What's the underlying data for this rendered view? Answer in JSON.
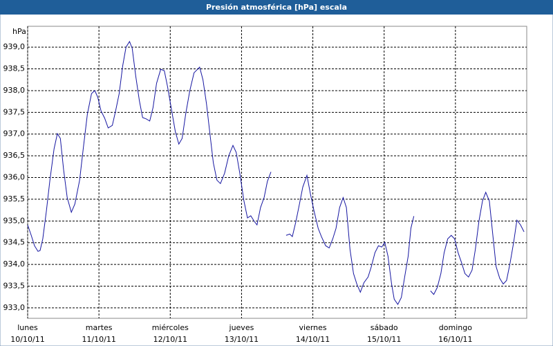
{
  "chart_data": {
    "type": "line",
    "title": "Presión atmosférica [hPa] escala",
    "y_unit": "hPa",
    "x": [
      0,
      1.2,
      2.3,
      3.5,
      4.2,
      5.1,
      6.3,
      7.5,
      8.9,
      10,
      11,
      12.1,
      13.3,
      14.7,
      15.9,
      17.5,
      18.7,
      20.1,
      21.5,
      22.6,
      23.6,
      24.7,
      25.9,
      27.1,
      28.5,
      29.6,
      30.8,
      32,
      33.1,
      34.3,
      35.2,
      36.4,
      37.6,
      38.7,
      39.9,
      41.1,
      42.2,
      43.4,
      44.8,
      46,
      47.1,
      48.3,
      49.7,
      50.9,
      52,
      53.2,
      54.6,
      56,
      57.9,
      59,
      60.2,
      61.4,
      62.5,
      63.7,
      64.9,
      66.3,
      67.7,
      69.1,
      70.2,
      71.4,
      72.8,
      74,
      75.1,
      76.3,
      77.2,
      78.4,
      79.6,
      80.7,
      81.9,
      83.5,
      87,
      88.2,
      89.1,
      90.3,
      91.5,
      92.6,
      94,
      95.2,
      96.4,
      97.8,
      98.9,
      100.3,
      101.5,
      102.7,
      103.8,
      105,
      106.2,
      107.3,
      108.5,
      109.7,
      110.8,
      112,
      113.2,
      114.6,
      115.7,
      116.9,
      118.1,
      119.2,
      120.2,
      121.3,
      122.5,
      123.4,
      124.6,
      125.8,
      126.9,
      128.1,
      129,
      130,
      134,
      135.6,
      136.7,
      137.9,
      139.1,
      140.2,
      141.4,
      142.6,
      143.7,
      144.9,
      146.1,
      147.2,
      148.4,
      149.6,
      150.7,
      151.9,
      153.1,
      154.2,
      155.4,
      156.6,
      157.7,
      158.9,
      160.1,
      161.2,
      162.4,
      163.6,
      164.7,
      165.9,
      167.1
    ],
    "series": [
      {
        "name": "Presión",
        "color": "#1414a0",
        "values": [
          934.91,
          934.67,
          934.43,
          934.3,
          934.32,
          934.59,
          935.23,
          935.94,
          936.66,
          937.01,
          936.9,
          936.18,
          935.54,
          935.2,
          935.39,
          935.94,
          936.66,
          937.46,
          937.93,
          938.0,
          937.85,
          937.53,
          937.37,
          937.14,
          937.2,
          937.53,
          937.93,
          938.57,
          939.0,
          939.13,
          938.97,
          938.33,
          937.77,
          937.38,
          937.35,
          937.3,
          937.61,
          938.17,
          938.49,
          938.46,
          938.09,
          937.61,
          937.06,
          936.77,
          936.9,
          937.46,
          938.0,
          938.41,
          938.54,
          938.25,
          937.7,
          936.98,
          936.34,
          935.94,
          935.86,
          936.1,
          936.5,
          936.74,
          936.58,
          936.1,
          935.46,
          935.07,
          935.12,
          934.99,
          934.91,
          935.31,
          935.54,
          935.91,
          936.13,
          null,
          934.67,
          934.7,
          934.64,
          934.99,
          935.39,
          935.78,
          936.05,
          935.62,
          935.23,
          934.83,
          934.64,
          934.43,
          934.38,
          934.59,
          934.83,
          935.31,
          935.54,
          935.31,
          934.35,
          933.79,
          933.55,
          933.36,
          933.58,
          933.71,
          933.95,
          934.27,
          934.43,
          934.4,
          934.51,
          934.19,
          933.55,
          933.2,
          933.08,
          933.24,
          933.71,
          934.19,
          934.83,
          935.11,
          null,
          933.39,
          933.31,
          933.47,
          933.79,
          934.27,
          934.59,
          934.67,
          934.59,
          934.27,
          934.03,
          933.79,
          933.71,
          933.87,
          934.35,
          934.99,
          935.46,
          935.66,
          935.46,
          934.67,
          933.95,
          933.68,
          933.55,
          933.63,
          934.03,
          934.51,
          935.02,
          934.91,
          934.75
        ]
      }
    ],
    "xlim": [
      0,
      168
    ],
    "xticks": [
      {
        "value": 0,
        "label": "lunes",
        "date": "10/10/11"
      },
      {
        "value": 24,
        "label": "martes",
        "date": "11/10/11"
      },
      {
        "value": 48,
        "label": "miércoles",
        "date": "12/10/11"
      },
      {
        "value": 72,
        "label": "jueves",
        "date": "13/10/11"
      },
      {
        "value": 96,
        "label": "viernes",
        "date": "14/10/11"
      },
      {
        "value": 120,
        "label": "sábado",
        "date": "15/10/11"
      },
      {
        "value": 144,
        "label": "domingo",
        "date": "16/10/11"
      }
    ],
    "ylim": [
      932.76,
      939.48
    ],
    "yticks": [
      {
        "value": 933,
        "label": "933,0"
      },
      {
        "value": 933.5,
        "label": "933,5"
      },
      {
        "value": 934,
        "label": "934,0"
      },
      {
        "value": 934.5,
        "label": "934,5"
      },
      {
        "value": 935,
        "label": "935,0"
      },
      {
        "value": 935.5,
        "label": "935,5"
      },
      {
        "value": 936,
        "label": "936,0"
      },
      {
        "value": 936.5,
        "label": "936,5"
      },
      {
        "value": 937,
        "label": "937,0"
      },
      {
        "value": 937.5,
        "label": "937,5"
      },
      {
        "value": 938,
        "label": "938,0"
      },
      {
        "value": 938.5,
        "label": "938,5"
      },
      {
        "value": 939,
        "label": "939,0"
      }
    ],
    "grid": true
  }
}
